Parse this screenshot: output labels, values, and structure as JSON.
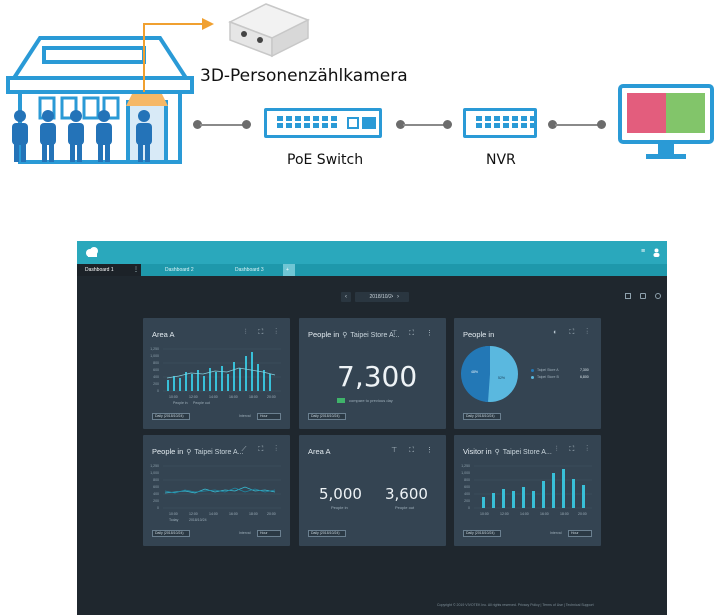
{
  "diagram": {
    "camera_label": "3D-Personenzählkamera",
    "switch_label": "PoE Switch",
    "nvr_label": "NVR",
    "colors": {
      "blue": "#2a9ad6",
      "orange": "#f0a030",
      "monitor_left": "#e35d7d",
      "monitor_right": "#82c56a"
    }
  },
  "dashboard": {
    "tabs": [
      "Dashboard 1",
      "Dashboard 2",
      "Dashboard 3"
    ],
    "add_tab": "+",
    "date": "2018/10/24",
    "prev": "‹",
    "next": "›",
    "footer": "Copyright © 2019 VIVOTEK Inc. All rights reserved.   Privacy Policy  |  Terms of Use  |  Technical Support",
    "panels": {
      "p1": {
        "title": "Area A",
        "select": "Daily (2018/10/24)",
        "interval": "Interval",
        "interval_value": "Hour",
        "legend": [
          "People in",
          "People out"
        ],
        "yticks": [
          "1,250",
          "1,000",
          "800",
          "600",
          "400",
          "200",
          "0"
        ],
        "xticks": [
          "10:00",
          "12:00",
          "14:00",
          "16:00",
          "18:00",
          "20:00"
        ]
      },
      "p2": {
        "title": "People in",
        "location": "Taipei Store A...",
        "value": "7,300",
        "compare": "compare to previous day",
        "select": "Daily (2018/10/24)"
      },
      "p3": {
        "title": "People in",
        "select": "Daily (2018/10/24)",
        "legend": [
          {
            "name": "Taipei Store A",
            "value": "7,300"
          },
          {
            "name": "Taipei Store B",
            "value": "6,800"
          }
        ],
        "slices": [
          "48%",
          "52%"
        ]
      },
      "p4": {
        "title": "People in",
        "location": "Taipei Store A...",
        "select": "Daily (2018/10/24)",
        "interval": "Interval",
        "interval_value": "Hour",
        "legend": [
          "Today",
          "2018/10/24"
        ],
        "yticks": [
          "1,250",
          "1,000",
          "800",
          "600",
          "400",
          "200",
          "0"
        ],
        "xticks": [
          "10:00",
          "12:00",
          "14:00",
          "16:00",
          "18:00",
          "20:00"
        ]
      },
      "p5": {
        "title": "Area A",
        "in_value": "5,000",
        "in_label": "People in",
        "out_value": "3,600",
        "out_label": "People out",
        "select": "Daily (2018/10/24)"
      },
      "p6": {
        "title": "Visitor in",
        "location": "Taipei Store A...",
        "select": "Daily (2018/10/24)",
        "interval": "Interval",
        "interval_value": "Hour",
        "yticks": [
          "1,250",
          "1,000",
          "800",
          "600",
          "400",
          "200",
          "0"
        ],
        "xticks": [
          "10:00",
          "12:00",
          "14:00",
          "16:00",
          "18:00",
          "20:00"
        ]
      }
    }
  }
}
